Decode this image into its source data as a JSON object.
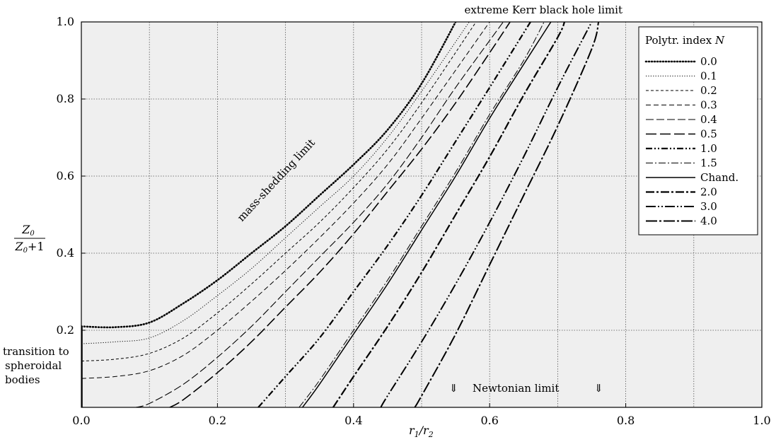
{
  "chart_data": {
    "type": "line",
    "xlabel": "r1/r2",
    "ylabel": "Z0/(Z0+1)",
    "xlim": [
      0,
      1
    ],
    "ylim": [
      0,
      1
    ],
    "x_ticks": [
      "0.0",
      "0.2",
      "0.4",
      "0.6",
      "0.8",
      "1.0"
    ],
    "y_ticks": [
      "0.2",
      "0.4",
      "0.6",
      "0.8",
      "1.0"
    ],
    "grid": true,
    "legend_title": "Polytr. index N",
    "legend_position": "top-right",
    "annotations": {
      "top": "extreme Kerr black hole limit",
      "mass_shedding": "mass-shedding limit",
      "newtonian": "Newtonian limit",
      "newtonian_arrow": "⇓",
      "transition_1": "transition to",
      "transition_2": "spheroidal",
      "transition_3": "bodies"
    },
    "series": [
      {
        "name": "0.0",
        "style": "dotted-heavy",
        "points": [
          [
            0,
            0.21
          ],
          [
            0.05,
            0.208
          ],
          [
            0.1,
            0.22
          ],
          [
            0.15,
            0.27
          ],
          [
            0.2,
            0.33
          ],
          [
            0.25,
            0.4
          ],
          [
            0.3,
            0.47
          ],
          [
            0.35,
            0.55
          ],
          [
            0.4,
            0.63
          ],
          [
            0.45,
            0.72
          ],
          [
            0.5,
            0.84
          ],
          [
            0.55,
            1.0
          ]
        ]
      },
      {
        "name": "0.1",
        "style": "dotted-thin",
        "points": [
          [
            0,
            0.165
          ],
          [
            0.05,
            0.17
          ],
          [
            0.1,
            0.18
          ],
          [
            0.15,
            0.225
          ],
          [
            0.2,
            0.29
          ],
          [
            0.25,
            0.36
          ],
          [
            0.3,
            0.44
          ],
          [
            0.35,
            0.52
          ],
          [
            0.4,
            0.6
          ],
          [
            0.45,
            0.7
          ],
          [
            0.5,
            0.82
          ],
          [
            0.57,
            1.0
          ]
        ]
      },
      {
        "name": "0.2",
        "style": "dash-short",
        "points": [
          [
            0,
            0.12
          ],
          [
            0.05,
            0.125
          ],
          [
            0.1,
            0.14
          ],
          [
            0.15,
            0.18
          ],
          [
            0.2,
            0.245
          ],
          [
            0.25,
            0.32
          ],
          [
            0.3,
            0.4
          ],
          [
            0.35,
            0.48
          ],
          [
            0.4,
            0.57
          ],
          [
            0.45,
            0.67
          ],
          [
            0.5,
            0.79
          ],
          [
            0.58,
            1.0
          ]
        ]
      },
      {
        "name": "0.3",
        "style": "dash-medium",
        "points": [
          [
            0,
            0.075
          ],
          [
            0.05,
            0.08
          ],
          [
            0.1,
            0.095
          ],
          [
            0.15,
            0.135
          ],
          [
            0.2,
            0.2
          ],
          [
            0.25,
            0.275
          ],
          [
            0.3,
            0.355
          ],
          [
            0.35,
            0.44
          ],
          [
            0.4,
            0.53
          ],
          [
            0.45,
            0.63
          ],
          [
            0.5,
            0.75
          ],
          [
            0.6,
            1.0
          ]
        ]
      },
      {
        "name": "0.4",
        "style": "dash-long",
        "points": [
          [
            0.08,
            0.0
          ],
          [
            0.1,
            0.01
          ],
          [
            0.15,
            0.06
          ],
          [
            0.2,
            0.13
          ],
          [
            0.25,
            0.21
          ],
          [
            0.3,
            0.3
          ],
          [
            0.35,
            0.39
          ],
          [
            0.4,
            0.48
          ],
          [
            0.45,
            0.58
          ],
          [
            0.5,
            0.7
          ],
          [
            0.55,
            0.83
          ],
          [
            0.62,
            1.0
          ]
        ]
      },
      {
        "name": "0.5",
        "style": "dash-xlong",
        "points": [
          [
            0.13,
            0.0
          ],
          [
            0.15,
            0.02
          ],
          [
            0.2,
            0.09
          ],
          [
            0.25,
            0.17
          ],
          [
            0.3,
            0.26
          ],
          [
            0.35,
            0.35
          ],
          [
            0.4,
            0.45
          ],
          [
            0.45,
            0.56
          ],
          [
            0.5,
            0.67
          ],
          [
            0.55,
            0.79
          ],
          [
            0.6,
            0.92
          ],
          [
            0.63,
            1.0
          ]
        ]
      },
      {
        "name": "1.0",
        "style": "dash-dot-dot-heavy",
        "points": [
          [
            0.26,
            0.0
          ],
          [
            0.3,
            0.08
          ],
          [
            0.35,
            0.18
          ],
          [
            0.4,
            0.3
          ],
          [
            0.45,
            0.42
          ],
          [
            0.5,
            0.55
          ],
          [
            0.55,
            0.69
          ],
          [
            0.6,
            0.83
          ],
          [
            0.66,
            1.0
          ]
        ]
      },
      {
        "name": "1.5",
        "style": "dash-dot-thin",
        "points": [
          [
            0.32,
            0.0
          ],
          [
            0.35,
            0.07
          ],
          [
            0.4,
            0.2
          ],
          [
            0.45,
            0.33
          ],
          [
            0.5,
            0.47
          ],
          [
            0.55,
            0.61
          ],
          [
            0.6,
            0.76
          ],
          [
            0.65,
            0.9
          ],
          [
            0.68,
            1.0
          ]
        ]
      },
      {
        "name": "Chand.",
        "style": "solid",
        "points": [
          [
            0.325,
            0.0
          ],
          [
            0.35,
            0.06
          ],
          [
            0.4,
            0.19
          ],
          [
            0.45,
            0.32
          ],
          [
            0.5,
            0.46
          ],
          [
            0.55,
            0.6
          ],
          [
            0.6,
            0.75
          ],
          [
            0.65,
            0.89
          ],
          [
            0.69,
            1.0
          ]
        ]
      },
      {
        "name": "2.0",
        "style": "dash-dot-heavy",
        "points": [
          [
            0.37,
            0.0
          ],
          [
            0.4,
            0.08
          ],
          [
            0.45,
            0.21
          ],
          [
            0.5,
            0.35
          ],
          [
            0.55,
            0.5
          ],
          [
            0.6,
            0.65
          ],
          [
            0.65,
            0.81
          ],
          [
            0.7,
            0.96
          ],
          [
            0.71,
            1.0
          ]
        ]
      },
      {
        "name": "3.0",
        "style": "dash-dot-dot-long",
        "points": [
          [
            0.44,
            0.0
          ],
          [
            0.45,
            0.03
          ],
          [
            0.5,
            0.17
          ],
          [
            0.55,
            0.32
          ],
          [
            0.6,
            0.48
          ],
          [
            0.65,
            0.65
          ],
          [
            0.7,
            0.83
          ],
          [
            0.75,
            1.0
          ]
        ]
      },
      {
        "name": "4.0",
        "style": "long-dash-dot",
        "points": [
          [
            0.49,
            0.0
          ],
          [
            0.5,
            0.03
          ],
          [
            0.55,
            0.19
          ],
          [
            0.6,
            0.37
          ],
          [
            0.65,
            0.55
          ],
          [
            0.7,
            0.73
          ],
          [
            0.75,
            0.93
          ],
          [
            0.76,
            1.0
          ]
        ]
      }
    ]
  }
}
